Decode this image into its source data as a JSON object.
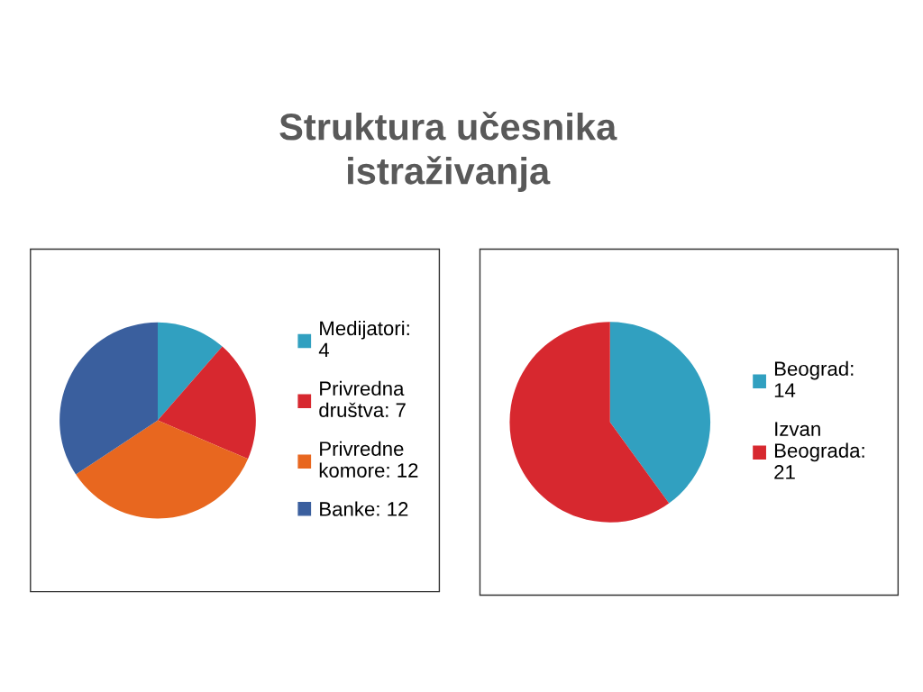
{
  "chart_data": [
    {
      "type": "pie",
      "title": "Struktura učesnika\nistraživanja",
      "categories": [
        "Medijatori:\n4",
        "Privredna\ndruštva: 7",
        "Privredne\nkomore: 12",
        "Banke: 12"
      ],
      "values": [
        4,
        7,
        12,
        12
      ],
      "colors": [
        "#31a0c0",
        "#d7282f",
        "#e8671f",
        "#3a5f9e"
      ],
      "legend": "right"
    },
    {
      "type": "pie",
      "categories": [
        "Beograd:\n14",
        "Izvan\nBeograda:\n21"
      ],
      "values": [
        14,
        21
      ],
      "colors": [
        "#31a0c0",
        "#d7282f"
      ],
      "legend": "right"
    }
  ]
}
